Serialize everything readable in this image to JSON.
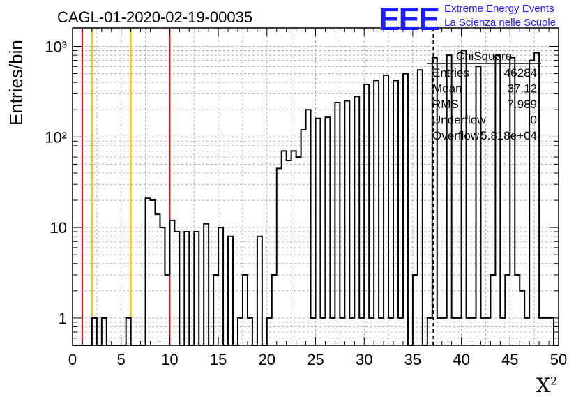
{
  "header": {
    "title": "CAGL-01-2020-02-19-00035",
    "logo_text": "EEE",
    "logo_line1": "Extreme Energy Events",
    "logo_line2": "La Scienza nelle Scuole"
  },
  "colors": {
    "histogram": "#000000",
    "red_lines": "#e8000b",
    "yellow_lines": "#f5c400",
    "logo": "#1f1fff",
    "grid": "#a0a0a0"
  },
  "stats_box": {
    "title": "ChiSquare",
    "rows": [
      {
        "label": "Entries",
        "value": "46284"
      },
      {
        "label": "Mean",
        "value": "37.12"
      },
      {
        "label": "RMS",
        "value": "7.989"
      },
      {
        "label": "Underflow",
        "value": "0"
      },
      {
        "label": "Overflow",
        "value": "5.818e+04"
      }
    ]
  },
  "chart_data": {
    "type": "histogram",
    "title": "CAGL-01-2020-02-19-00035",
    "xlabel": "X",
    "xlabel_sup": "2",
    "ylabel": "Entries/bin",
    "xlim": [
      0,
      50
    ],
    "ylim": [
      0.5,
      1600
    ],
    "yscale": "log",
    "bin_width": 0.5,
    "grid": true,
    "xticks": [
      "0",
      "5",
      "10",
      "15",
      "20",
      "25",
      "30",
      "35",
      "40",
      "45",
      "50"
    ],
    "yticks": [
      "1",
      "10",
      "10²",
      "10³"
    ],
    "bins": [
      {
        "x": 2.0,
        "y": 1
      },
      {
        "x": 3.0,
        "y": 1
      },
      {
        "x": 5.5,
        "y": 1
      },
      {
        "x": 7.5,
        "y": 21
      },
      {
        "x": 8.0,
        "y": 20
      },
      {
        "x": 8.5,
        "y": 14
      },
      {
        "x": 9.0,
        "y": 10
      },
      {
        "x": 9.5,
        "y": 3
      },
      {
        "x": 10.0,
        "y": 12
      },
      {
        "x": 10.5,
        "y": 9
      },
      {
        "x": 11.5,
        "y": 9
      },
      {
        "x": 12.5,
        "y": 9
      },
      {
        "x": 13.5,
        "y": 11
      },
      {
        "x": 14.5,
        "y": 3
      },
      {
        "x": 15.0,
        "y": 10
      },
      {
        "x": 16.0,
        "y": 8
      },
      {
        "x": 17.0,
        "y": 1
      },
      {
        "x": 17.5,
        "y": 3
      },
      {
        "x": 18.0,
        "y": 1
      },
      {
        "x": 19.0,
        "y": 8
      },
      {
        "x": 20.0,
        "y": 1
      },
      {
        "x": 20.5,
        "y": 3
      },
      {
        "x": 21.0,
        "y": 45
      },
      {
        "x": 21.5,
        "y": 70
      },
      {
        "x": 22.0,
        "y": 55
      },
      {
        "x": 22.5,
        "y": 70
      },
      {
        "x": 23.0,
        "y": 60
      },
      {
        "x": 23.5,
        "y": 120
      },
      {
        "x": 24.0,
        "y": 200
      },
      {
        "x": 24.5,
        "y": 1
      },
      {
        "x": 25.0,
        "y": 160
      },
      {
        "x": 25.5,
        "y": 1
      },
      {
        "x": 26.0,
        "y": 165
      },
      {
        "x": 26.5,
        "y": 1
      },
      {
        "x": 27.0,
        "y": 240
      },
      {
        "x": 27.5,
        "y": 1
      },
      {
        "x": 28.0,
        "y": 250
      },
      {
        "x": 28.5,
        "y": 1
      },
      {
        "x": 29.0,
        "y": 280
      },
      {
        "x": 29.5,
        "y": 1
      },
      {
        "x": 30.0,
        "y": 380
      },
      {
        "x": 30.5,
        "y": 1
      },
      {
        "x": 31.0,
        "y": 420
      },
      {
        "x": 31.5,
        "y": 1
      },
      {
        "x": 32.0,
        "y": 480
      },
      {
        "x": 32.5,
        "y": 1
      },
      {
        "x": 33.0,
        "y": 420
      },
      {
        "x": 33.5,
        "y": 1
      },
      {
        "x": 34.0,
        "y": 500
      },
      {
        "x": 35.0,
        "y": 3
      },
      {
        "x": 35.5,
        "y": 550
      },
      {
        "x": 36.5,
        "y": 1
      },
      {
        "x": 37.0,
        "y": 750
      },
      {
        "x": 37.5,
        "y": 1
      },
      {
        "x": 38.0,
        "y": 1
      },
      {
        "x": 38.5,
        "y": 800
      },
      {
        "x": 39.0,
        "y": 1
      },
      {
        "x": 39.5,
        "y": 1
      },
      {
        "x": 40.0,
        "y": 900
      },
      {
        "x": 40.5,
        "y": 1
      },
      {
        "x": 41.0,
        "y": 1
      },
      {
        "x": 41.5,
        "y": 600
      },
      {
        "x": 42.0,
        "y": 1
      },
      {
        "x": 42.5,
        "y": 1
      },
      {
        "x": 43.0,
        "y": 3
      },
      {
        "x": 43.5,
        "y": 800
      },
      {
        "x": 44.0,
        "y": 1
      },
      {
        "x": 44.5,
        "y": 3
      },
      {
        "x": 45.0,
        "y": 750
      },
      {
        "x": 45.5,
        "y": 3
      },
      {
        "x": 46.0,
        "y": 2
      },
      {
        "x": 46.5,
        "y": 1
      },
      {
        "x": 47.0,
        "y": 700
      },
      {
        "x": 47.5,
        "y": 850
      },
      {
        "x": 48.0,
        "y": 1
      },
      {
        "x": 48.5,
        "y": 1
      },
      {
        "x": 49.0,
        "y": 1
      }
    ],
    "vertical_markers": [
      {
        "x": 1,
        "color": "red"
      },
      {
        "x": 2,
        "color": "yellow"
      },
      {
        "x": 6,
        "color": "yellow"
      },
      {
        "x": 10,
        "color": "red"
      }
    ],
    "mean_marker": {
      "x": 37.12,
      "style": "dashed"
    }
  }
}
